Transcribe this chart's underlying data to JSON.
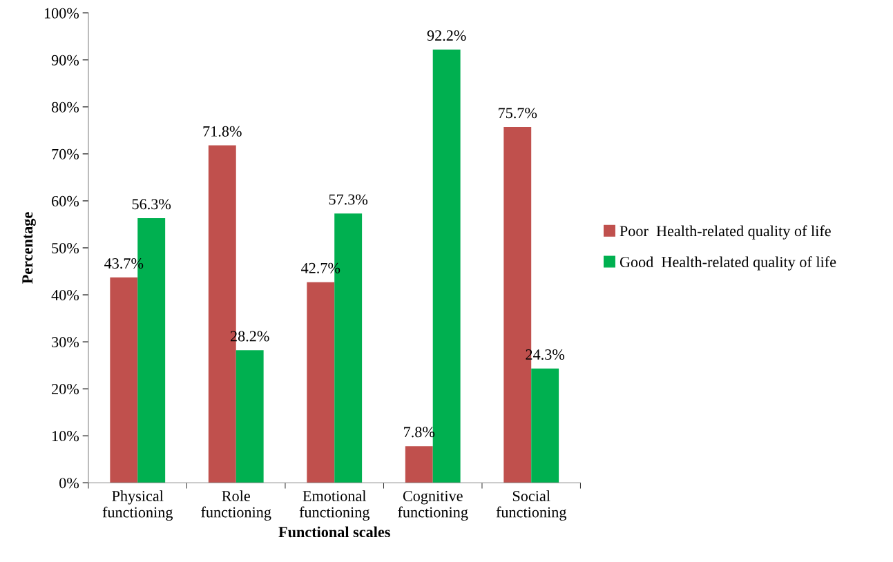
{
  "chart_data": {
    "type": "bar",
    "xlabel": "Functional scales",
    "ylabel": "Percentage",
    "categories": [
      "Physical\nfunctioning",
      "Role\nfunctioning",
      "Emotional\nfunctioning",
      "Cognitive\nfunctioning",
      "Social\nfunctioning"
    ],
    "series": [
      {
        "name": "Poor  Health-related quality of life",
        "color": "#c0504d",
        "values": [
          43.7,
          71.8,
          42.7,
          7.8,
          75.7
        ],
        "value_labels": [
          "43.7%",
          "71.8%",
          "42.7%",
          "7.8%",
          "75.7%"
        ]
      },
      {
        "name": "Good  Health-related quality of life",
        "color": "#00b050",
        "values": [
          56.3,
          28.2,
          57.3,
          92.2,
          24.3
        ],
        "value_labels": [
          "56.3%",
          "28.2%",
          "57.3%",
          "92.2%",
          "24.3%"
        ]
      }
    ],
    "ylim": [
      0,
      100
    ],
    "yticks": [
      {
        "value": 0,
        "label": "0%"
      },
      {
        "value": 10,
        "label": "10%"
      },
      {
        "value": 20,
        "label": "20%"
      },
      {
        "value": 30,
        "label": "30%"
      },
      {
        "value": 40,
        "label": "40%"
      },
      {
        "value": 50,
        "label": "50%"
      },
      {
        "value": 60,
        "label": "60%"
      },
      {
        "value": 70,
        "label": "70%"
      },
      {
        "value": 80,
        "label": "80%"
      },
      {
        "value": 90,
        "label": "90%"
      },
      {
        "value": 100,
        "label": "100%"
      }
    ],
    "grid": false,
    "legend": "right"
  }
}
